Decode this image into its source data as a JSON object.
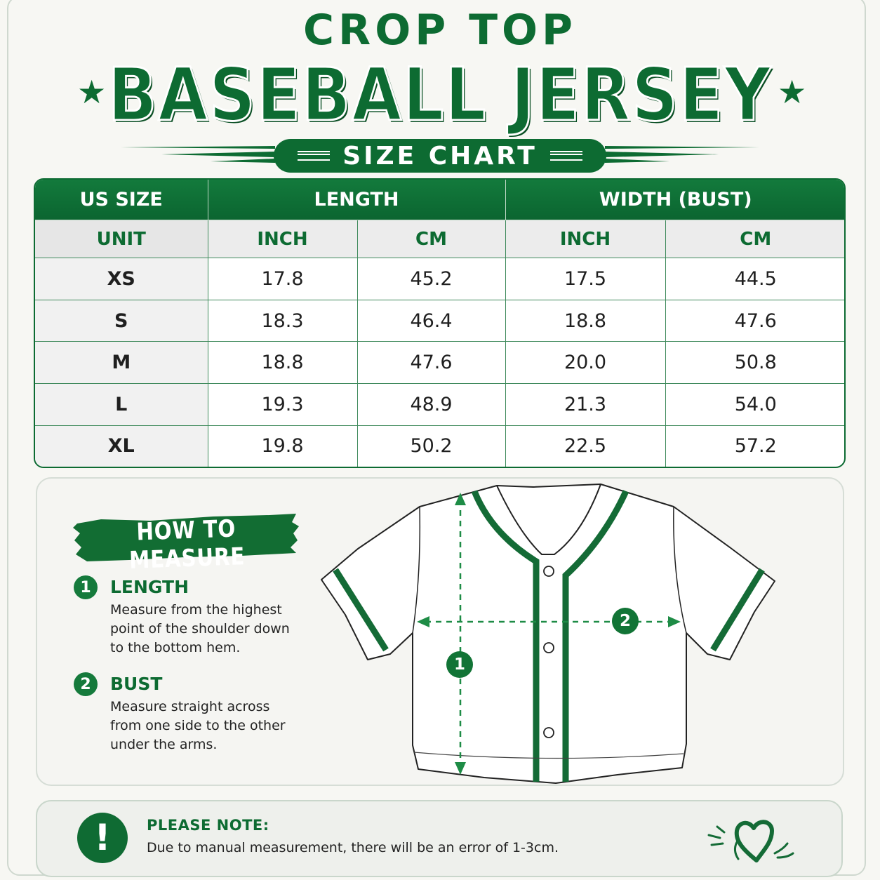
{
  "header": {
    "subtitle": "CROP TOP",
    "title": "BASEBALL JERSEY",
    "banner": "SIZE CHART",
    "star_icon": "star-icon"
  },
  "table": {
    "headers": {
      "size": "US SIZE",
      "length": "LENGTH",
      "width": "WIDTH (BUST)"
    },
    "units": {
      "label": "UNIT",
      "len_inch": "INCH",
      "len_cm": "CM",
      "wid_inch": "INCH",
      "wid_cm": "CM"
    },
    "rows": [
      {
        "size": "XS",
        "len_inch": "17.8",
        "len_cm": "45.2",
        "wid_inch": "17.5",
        "wid_cm": "44.5"
      },
      {
        "size": "S",
        "len_inch": "18.3",
        "len_cm": "46.4",
        "wid_inch": "18.8",
        "wid_cm": "47.6"
      },
      {
        "size": "M",
        "len_inch": "18.8",
        "len_cm": "47.6",
        "wid_inch": "20.0",
        "wid_cm": "50.8"
      },
      {
        "size": "L",
        "len_inch": "19.3",
        "len_cm": "48.9",
        "wid_inch": "21.3",
        "wid_cm": "54.0"
      },
      {
        "size": "XL",
        "len_inch": "19.8",
        "len_cm": "50.2",
        "wid_inch": "22.5",
        "wid_cm": "57.2"
      }
    ]
  },
  "measure": {
    "heading": "HOW TO MEASURE",
    "steps": [
      {
        "num": "1",
        "title": "LENGTH",
        "desc": "Measure from the highest point of the shoulder down to the bottom hem."
      },
      {
        "num": "2",
        "title": "BUST",
        "desc": "Measure straight across from one side to the other under the arms."
      }
    ],
    "diagram_labels": {
      "length": "1",
      "bust": "2"
    }
  },
  "note": {
    "icon": "!",
    "title": "PLEASE NOTE:",
    "text": "Due to manual measurement, there will be an error of 1-3cm."
  },
  "colors": {
    "brand_green": "#0d6b32",
    "background": "#f7f7f3"
  }
}
